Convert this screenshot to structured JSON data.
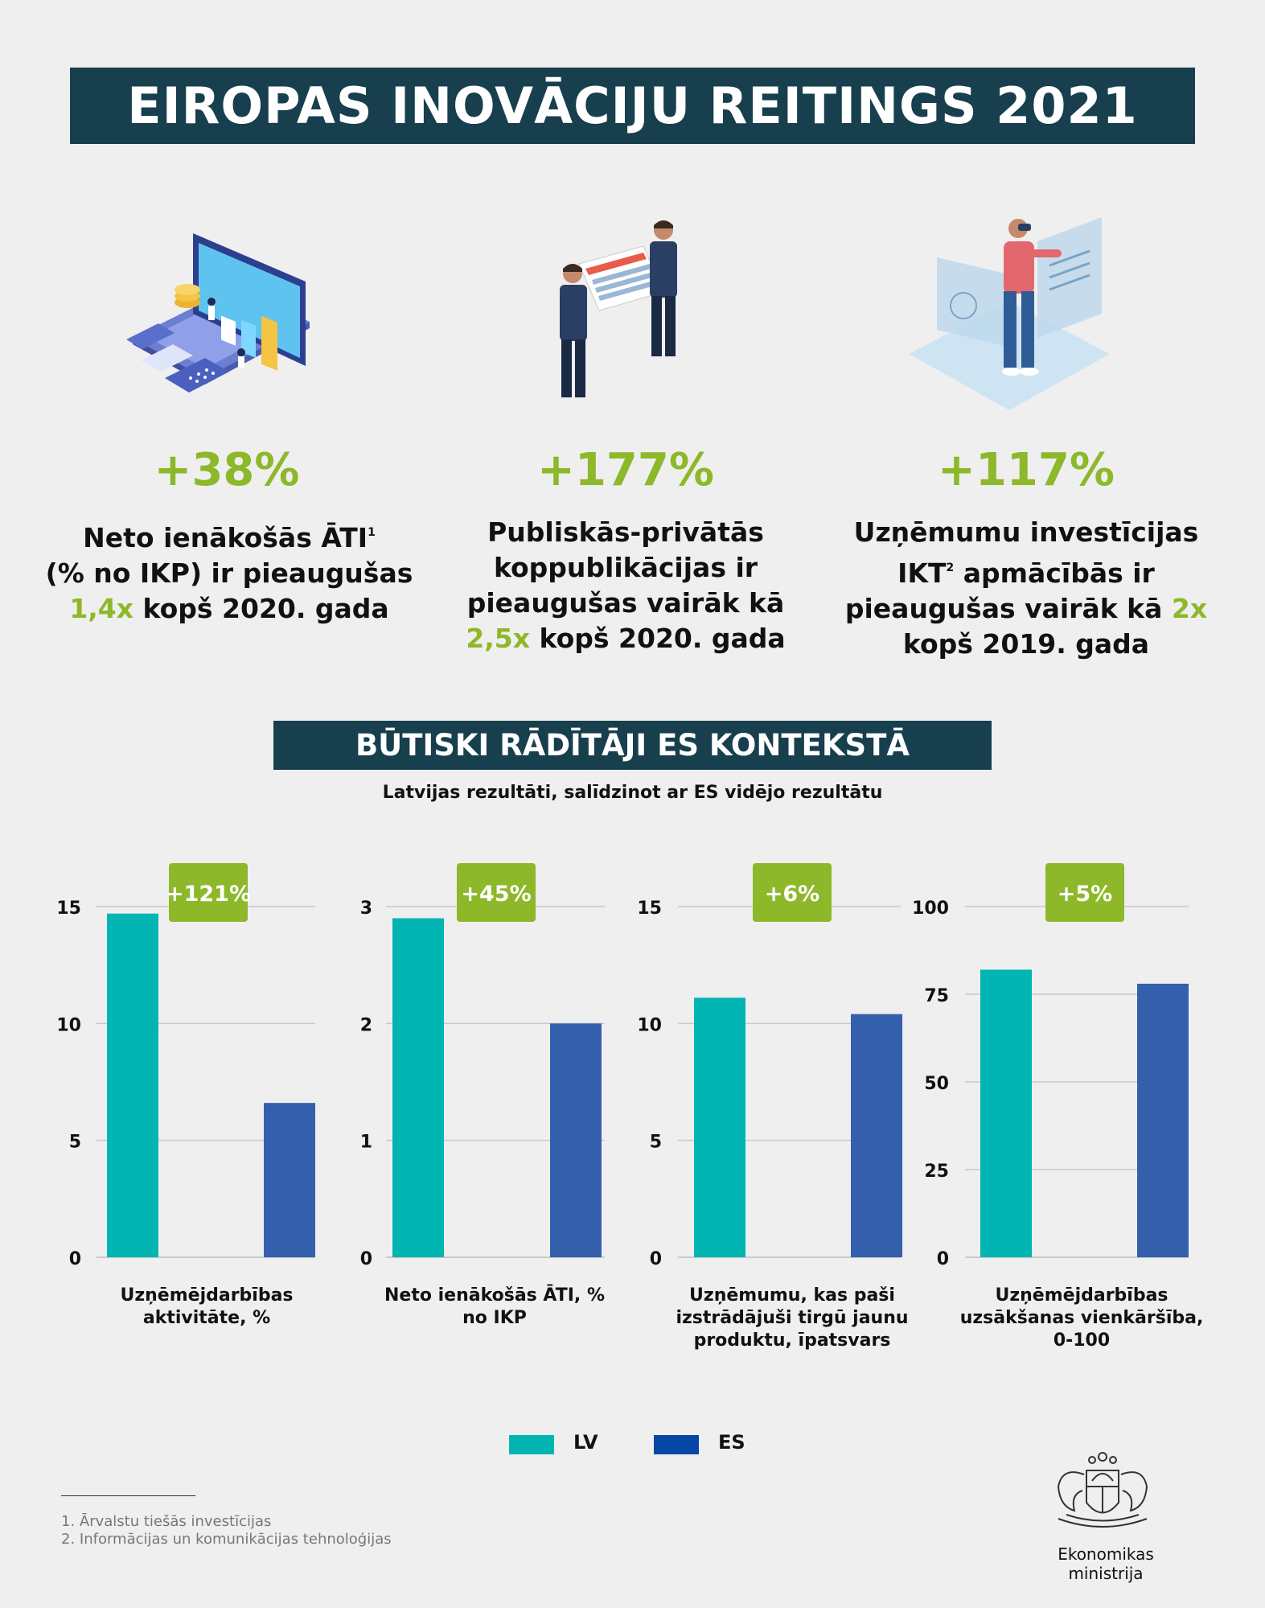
{
  "title": "EIROPAS INOVĀCIJU REITINGS 2021",
  "stats": [
    {
      "value": "+38%",
      "lines": [
        {
          "text": "Neto ienākošās ĀTI",
          "sup": "1"
        },
        {
          "text": "(% no IKP) ir pieaugušas"
        },
        {
          "hl": "1,4x",
          "text": " kopš 2020. gada"
        }
      ]
    },
    {
      "value": "+177%",
      "lines": [
        {
          "text": "Publiskās-privātās"
        },
        {
          "text": "koppublikācijas ir"
        },
        {
          "text": "pieaugušas vairāk kā"
        },
        {
          "hl": "2,5x",
          "text": " kopš 2020. gada"
        }
      ]
    },
    {
      "value": "+117%",
      "lines": [
        {
          "text": "Uzņēmumu investīcijas"
        },
        {
          "text": "IKT",
          "sup": "2",
          "after": " apmācībās ir"
        },
        {
          "text": "pieaugušas vairāk kā ",
          "hl_end": "2x"
        },
        {
          "text": "kopš 2019. gada"
        }
      ]
    }
  ],
  "section_title": "BŪTISKI RĀDĪTĀJI ES KONTEKSTĀ",
  "section_subtitle": "Latvijas rezultāti, salīdzinot ar ES vidējo rezultātu",
  "legend": {
    "lv": "LV",
    "es": "ES"
  },
  "colors": {
    "lv": "#00b5b2",
    "es": "#335fad",
    "legend_es": "#0447a6",
    "accent": "#8db829",
    "dark": "#173f4d"
  },
  "chart_data": [
    {
      "type": "bar",
      "categories": [
        "LV",
        "ES"
      ],
      "values": [
        14.7,
        6.6
      ],
      "ylim": [
        0,
        15
      ],
      "ticks": [
        0,
        5,
        10,
        15
      ],
      "badge": "+121%",
      "xlabel": "Uzņēmējdarbības aktivitāte, %",
      "grid": true
    },
    {
      "type": "bar",
      "categories": [
        "LV",
        "ES"
      ],
      "values": [
        2.9,
        2.0
      ],
      "ylim": [
        0,
        3
      ],
      "ticks": [
        0,
        1,
        2,
        3
      ],
      "badge": "+45%",
      "xlabel": "Neto ienākošās ĀTI, % no IKP",
      "grid": true
    },
    {
      "type": "bar",
      "categories": [
        "LV",
        "ES"
      ],
      "values": [
        11.1,
        10.4
      ],
      "ylim": [
        0,
        15
      ],
      "ticks": [
        0,
        5,
        10,
        15
      ],
      "badge": "+6%",
      "xlabel": "Uzņēmumu, kas paši izstrādājuši tirgū jaunu produktu, īpatsvars",
      "grid": true
    },
    {
      "type": "bar",
      "categories": [
        "LV",
        "ES"
      ],
      "values": [
        82,
        78
      ],
      "ylim": [
        0,
        100
      ],
      "ticks": [
        0,
        25,
        50,
        75,
        100
      ],
      "badge": "+5%",
      "xlabel": "Uzņēmējdarbības uzsākšanas vienkāršība, 0-100",
      "grid": true
    }
  ],
  "footnotes": [
    "1. Ārvalstu tiešās investīcijas",
    "2. Informācijas un komunikācijas tehnoloģijas"
  ],
  "ministry": "Ekonomikas ministrija",
  "icons": [
    "laptop-finance-illustration",
    "business-handshake-illustration",
    "vr-user-illustration",
    "latvian-coat-of-arms"
  ]
}
